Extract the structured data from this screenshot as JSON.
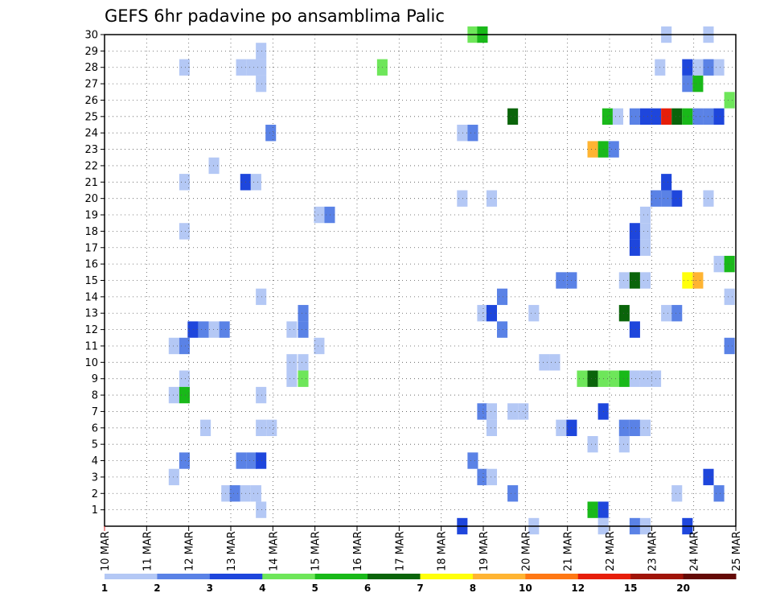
{
  "chart_data": {
    "type": "heatmap",
    "title": "GEFS 6hr padavine po ansamblima Palic",
    "xlabel": "",
    "ylabel": "",
    "x_range": [
      "2024-03-10T00:00",
      "2024-03-25T00:00"
    ],
    "x_step_hours": 6,
    "x_tick_labels": [
      "10 MAR",
      "11 MAR",
      "12 MAR",
      "13 MAR",
      "14 MAR",
      "15 MAR",
      "16 MAR",
      "17 MAR",
      "18 MAR",
      "19 MAR",
      "20 MAR",
      "21 MAR",
      "22 MAR",
      "23 MAR",
      "24 MAR",
      "25 MAR"
    ],
    "y_tick_labels": [
      "1",
      "2",
      "3",
      "4",
      "5",
      "6",
      "7",
      "8",
      "9",
      "10",
      "11",
      "12",
      "13",
      "14",
      "15",
      "16",
      "17",
      "18",
      "19",
      "20",
      "21",
      "22",
      "23",
      "24",
      "25",
      "26",
      "27",
      "28",
      "29",
      "30"
    ],
    "ylim": [
      0,
      30
    ],
    "grid": true,
    "legend": {
      "placement": "bottom",
      "labels": [
        "1",
        "2",
        "3",
        "4",
        "5",
        "6",
        "7",
        "8",
        "10",
        "12",
        "15",
        "20"
      ],
      "colors": [
        "#b4c8f5",
        "#5a82e6",
        "#1e46dc",
        "#6ee65a",
        "#19b919",
        "#0a640a",
        "#ffff0a",
        "#ffb432",
        "#ff7814",
        "#e61e0a",
        "#a01408",
        "#640a06"
      ]
    },
    "cells": [
      {
        "m": 30,
        "d": "18.75",
        "b": 3
      },
      {
        "m": 30,
        "d": "18.98",
        "b": 4
      },
      {
        "m": 30,
        "d": "23.35",
        "b": 0
      },
      {
        "m": 30,
        "d": "24.35",
        "b": 0
      },
      {
        "m": 29,
        "d": "13.72",
        "b": 0
      },
      {
        "m": 28,
        "d": "11.9",
        "b": 0
      },
      {
        "m": 28,
        "d": "13.25",
        "b": 0
      },
      {
        "m": 28,
        "d": "13.5",
        "b": 0
      },
      {
        "m": 28,
        "d": "13.72",
        "b": 0
      },
      {
        "m": 28,
        "d": "16.6",
        "b": 3
      },
      {
        "m": 28,
        "d": "23.2",
        "b": 0
      },
      {
        "m": 28,
        "d": "23.85",
        "b": 2
      },
      {
        "m": 28,
        "d": "24.1",
        "b": 0
      },
      {
        "m": 28,
        "d": "24.35",
        "b": 1
      },
      {
        "m": 28,
        "d": "24.6",
        "b": 0
      },
      {
        "m": 27,
        "d": "13.72",
        "b": 0
      },
      {
        "m": 27,
        "d": "23.85",
        "b": 1
      },
      {
        "m": 27,
        "d": "24.1",
        "b": 4
      },
      {
        "m": 26,
        "d": "24.85",
        "b": 3
      },
      {
        "m": 25,
        "d": "19.7",
        "b": 5
      },
      {
        "m": 25,
        "d": "21.95",
        "b": 4
      },
      {
        "m": 25,
        "d": "22.2",
        "b": 0
      },
      {
        "m": 25,
        "d": "22.6",
        "b": 1
      },
      {
        "m": 25,
        "d": "22.85",
        "b": 2
      },
      {
        "m": 25,
        "d": "23.1",
        "b": 2
      },
      {
        "m": 25,
        "d": "23.35",
        "b": 9
      },
      {
        "m": 25,
        "d": "23.6",
        "b": 5
      },
      {
        "m": 25,
        "d": "23.85",
        "b": 4
      },
      {
        "m": 25,
        "d": "24.1",
        "b": 1
      },
      {
        "m": 25,
        "d": "24.35",
        "b": 1
      },
      {
        "m": 25,
        "d": "24.6",
        "b": 2
      },
      {
        "m": 24,
        "d": "13.95",
        "b": 1
      },
      {
        "m": 24,
        "d": "18.5",
        "b": 0
      },
      {
        "m": 24,
        "d": "18.75",
        "b": 1
      },
      {
        "m": 23,
        "d": "21.6",
        "b": 7
      },
      {
        "m": 23,
        "d": "21.85",
        "b": 4
      },
      {
        "m": 23,
        "d": "22.1",
        "b": 1
      },
      {
        "m": 22,
        "d": "12.6",
        "b": 0
      },
      {
        "m": 21,
        "d": "11.9",
        "b": 0
      },
      {
        "m": 21,
        "d": "13.35",
        "b": 2
      },
      {
        "m": 21,
        "d": "13.6",
        "b": 0
      },
      {
        "m": 21,
        "d": "23.35",
        "b": 2
      },
      {
        "m": 20,
        "d": "18.5",
        "b": 0
      },
      {
        "m": 20,
        "d": "19.2",
        "b": 0
      },
      {
        "m": 20,
        "d": "23.1",
        "b": 1
      },
      {
        "m": 20,
        "d": "23.35",
        "b": 1
      },
      {
        "m": 20,
        "d": "23.6",
        "b": 2
      },
      {
        "m": 20,
        "d": "24.35",
        "b": 0
      },
      {
        "m": 19,
        "d": "15.1",
        "b": 0
      },
      {
        "m": 19,
        "d": "15.35",
        "b": 1
      },
      {
        "m": 19,
        "d": "22.85",
        "b": 0
      },
      {
        "m": 18,
        "d": "11.9",
        "b": 0
      },
      {
        "m": 18,
        "d": "22.6",
        "b": 2
      },
      {
        "m": 18,
        "d": "22.85",
        "b": 0
      },
      {
        "m": 17,
        "d": "22.6",
        "b": 2
      },
      {
        "m": 17,
        "d": "22.85",
        "b": 0
      },
      {
        "m": 16,
        "d": "24.6",
        "b": 0
      },
      {
        "m": 16,
        "d": "24.85",
        "b": 4
      },
      {
        "m": 15,
        "d": "20.85",
        "b": 1
      },
      {
        "m": 15,
        "d": "21.1",
        "b": 1
      },
      {
        "m": 15,
        "d": "22.35",
        "b": 0
      },
      {
        "m": 15,
        "d": "22.6",
        "b": 5
      },
      {
        "m": 15,
        "d": "22.85",
        "b": 0
      },
      {
        "m": 15,
        "d": "23.85",
        "b": 6
      },
      {
        "m": 15,
        "d": "24.1",
        "b": 7
      },
      {
        "m": 14,
        "d": "13.72",
        "b": 0
      },
      {
        "m": 14,
        "d": "19.45",
        "b": 1
      },
      {
        "m": 14,
        "d": "24.85",
        "b": 0
      },
      {
        "m": 13,
        "d": "14.72",
        "b": 1
      },
      {
        "m": 13,
        "d": "18.98",
        "b": 0
      },
      {
        "m": 13,
        "d": "19.2",
        "b": 2
      },
      {
        "m": 13,
        "d": "20.2",
        "b": 0
      },
      {
        "m": 13,
        "d": "22.35",
        "b": 5
      },
      {
        "m": 13,
        "d": "23.35",
        "b": 0
      },
      {
        "m": 13,
        "d": "23.6",
        "b": 1
      },
      {
        "m": 12,
        "d": "12.1",
        "b": 2
      },
      {
        "m": 12,
        "d": "12.35",
        "b": 1
      },
      {
        "m": 12,
        "d": "12.6",
        "b": 0
      },
      {
        "m": 12,
        "d": "12.85",
        "b": 1
      },
      {
        "m": 12,
        "d": "14.45",
        "b": 0
      },
      {
        "m": 12,
        "d": "14.72",
        "b": 1
      },
      {
        "m": 12,
        "d": "19.45",
        "b": 1
      },
      {
        "m": 12,
        "d": "22.6",
        "b": 2
      },
      {
        "m": 11,
        "d": "11.65",
        "b": 0
      },
      {
        "m": 11,
        "d": "11.9",
        "b": 1
      },
      {
        "m": 11,
        "d": "15.1",
        "b": 0
      },
      {
        "m": 11,
        "d": "24.85",
        "b": 1
      },
      {
        "m": 10,
        "d": "14.45",
        "b": 0
      },
      {
        "m": 10,
        "d": "14.72",
        "b": 0
      },
      {
        "m": 10,
        "d": "20.45",
        "b": 0
      },
      {
        "m": 10,
        "d": "20.7",
        "b": 0
      },
      {
        "m": 9,
        "d": "11.9",
        "b": 0
      },
      {
        "m": 9,
        "d": "14.45",
        "b": 0
      },
      {
        "m": 9,
        "d": "14.72",
        "b": 3
      },
      {
        "m": 9,
        "d": "21.35",
        "b": 3
      },
      {
        "m": 9,
        "d": "21.6",
        "b": 5
      },
      {
        "m": 9,
        "d": "21.85",
        "b": 3
      },
      {
        "m": 9,
        "d": "22.1",
        "b": 3
      },
      {
        "m": 9,
        "d": "22.35",
        "b": 4
      },
      {
        "m": 9,
        "d": "22.6",
        "b": 0
      },
      {
        "m": 9,
        "d": "22.85",
        "b": 0
      },
      {
        "m": 9,
        "d": "23.1",
        "b": 0
      },
      {
        "m": 8,
        "d": "11.65",
        "b": 0
      },
      {
        "m": 8,
        "d": "11.9",
        "b": 4
      },
      {
        "m": 8,
        "d": "13.72",
        "b": 0
      },
      {
        "m": 7,
        "d": "18.98",
        "b": 1
      },
      {
        "m": 7,
        "d": "19.2",
        "b": 0
      },
      {
        "m": 7,
        "d": "19.7",
        "b": 0
      },
      {
        "m": 7,
        "d": "19.95",
        "b": 0
      },
      {
        "m": 7,
        "d": "21.85",
        "b": 2
      },
      {
        "m": 6,
        "d": "12.4",
        "b": 0
      },
      {
        "m": 6,
        "d": "13.72",
        "b": 0
      },
      {
        "m": 6,
        "d": "13.97",
        "b": 0
      },
      {
        "m": 6,
        "d": "19.2",
        "b": 0
      },
      {
        "m": 6,
        "d": "20.85",
        "b": 0
      },
      {
        "m": 6,
        "d": "21.1",
        "b": 2
      },
      {
        "m": 6,
        "d": "22.35",
        "b": 1
      },
      {
        "m": 6,
        "d": "22.6",
        "b": 1
      },
      {
        "m": 6,
        "d": "22.85",
        "b": 0
      },
      {
        "m": 5,
        "d": "21.6",
        "b": 0
      },
      {
        "m": 5,
        "d": "22.35",
        "b": 0
      },
      {
        "m": 4,
        "d": "11.9",
        "b": 1
      },
      {
        "m": 4,
        "d": "13.25",
        "b": 1
      },
      {
        "m": 4,
        "d": "13.5",
        "b": 1
      },
      {
        "m": 4,
        "d": "13.72",
        "b": 2
      },
      {
        "m": 4,
        "d": "18.75",
        "b": 1
      },
      {
        "m": 3,
        "d": "11.65",
        "b": 0
      },
      {
        "m": 3,
        "d": "18.98",
        "b": 1
      },
      {
        "m": 3,
        "d": "19.2",
        "b": 0
      },
      {
        "m": 3,
        "d": "24.35",
        "b": 2
      },
      {
        "m": 2,
        "d": "12.9",
        "b": 0
      },
      {
        "m": 2,
        "d": "13.1",
        "b": 1
      },
      {
        "m": 2,
        "d": "13.35",
        "b": 0
      },
      {
        "m": 2,
        "d": "13.6",
        "b": 0
      },
      {
        "m": 2,
        "d": "19.7",
        "b": 1
      },
      {
        "m": 2,
        "d": "23.6",
        "b": 0
      },
      {
        "m": 2,
        "d": "24.6",
        "b": 1
      },
      {
        "m": 1,
        "d": "13.72",
        "b": 0
      },
      {
        "m": 1,
        "d": "21.6",
        "b": 4
      },
      {
        "m": 1,
        "d": "21.85",
        "b": 2
      },
      {
        "m": 0,
        "d": "18.5",
        "b": 2
      },
      {
        "m": 0,
        "d": "20.2",
        "b": 0
      },
      {
        "m": 0,
        "d": "21.85",
        "b": 0
      },
      {
        "m": 0,
        "d": "22.6",
        "b": 1
      },
      {
        "m": 0,
        "d": "22.85",
        "b": 0
      },
      {
        "m": 0,
        "d": "23.85",
        "b": 2
      }
    ]
  }
}
